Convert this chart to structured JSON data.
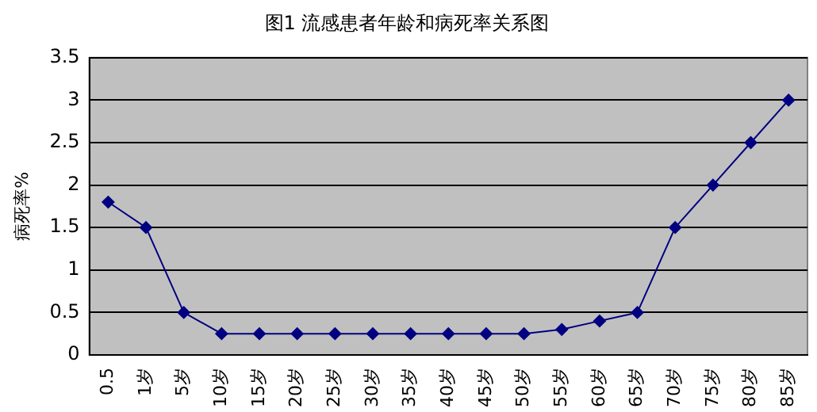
{
  "chart_data": {
    "type": "line",
    "title": "图1 流感患者年龄和病死率关系图",
    "ylabel": "病死率%",
    "categories": [
      "0.5",
      "1岁",
      "5岁",
      "10岁",
      "15岁",
      "20岁",
      "25岁",
      "30岁",
      "35岁",
      "40岁",
      "45岁",
      "50岁",
      "55岁",
      "60岁",
      "65岁",
      "70岁",
      "75岁",
      "80岁",
      "85岁"
    ],
    "series": [
      {
        "color": "#000080",
        "values": [
          1.8,
          1.5,
          0.5,
          0.25,
          0.25,
          0.25,
          0.25,
          0.25,
          0.25,
          0.25,
          0.25,
          0.25,
          0.3,
          0.4,
          0.5,
          1.5,
          2,
          2.5,
          3
        ]
      }
    ],
    "ylim": [
      0,
      3.5
    ],
    "yticks": [
      0,
      0.5,
      1,
      1.5,
      2,
      2.5,
      3,
      3.5
    ],
    "grid": "y",
    "legend": false,
    "marker": "diamond",
    "line_style": "solid"
  }
}
